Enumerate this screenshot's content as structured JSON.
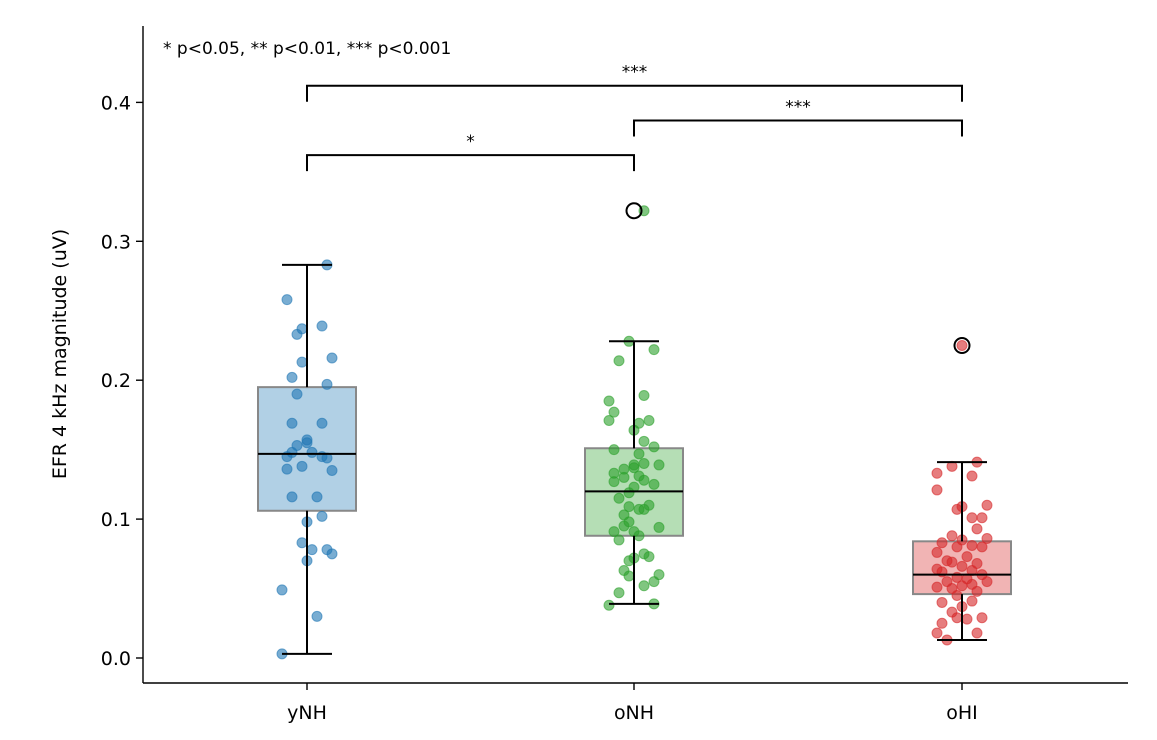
{
  "chart_data": {
    "type": "box",
    "title": "",
    "xlabel": "",
    "ylabel": "EFR 4 kHz magnitude (uV)",
    "ylim": [
      -0.018,
      0.455
    ],
    "yticks": [
      0.0,
      0.1,
      0.2,
      0.3,
      0.4
    ],
    "yticklabels": [
      "0.0",
      "0.1",
      "0.2",
      "0.3",
      "0.4"
    ],
    "grid": false,
    "legend_text": "* p<0.05, ** p<0.01, *** p<0.001",
    "categories": [
      "yNH",
      "oNH",
      "oHI"
    ],
    "colors": [
      "#1f77b4",
      "#2ca02c",
      "#d62728"
    ],
    "boxes": [
      {
        "group": "yNH",
        "q1": 0.106,
        "median": 0.147,
        "q3": 0.195,
        "whislo": 0.003,
        "whishi": 0.283,
        "fliers": []
      },
      {
        "group": "oNH",
        "q1": 0.088,
        "median": 0.12,
        "q3": 0.151,
        "whislo": 0.039,
        "whishi": 0.228,
        "fliers": [
          0.322
        ]
      },
      {
        "group": "oHI",
        "q1": 0.046,
        "median": 0.06,
        "q3": 0.084,
        "whislo": 0.013,
        "whishi": 0.141,
        "fliers": [
          0.225
        ]
      }
    ],
    "points": [
      {
        "group": "yNH",
        "values": [
          {
            "j": -0.05,
            "y": 0.003
          },
          {
            "j": -0.05,
            "y": 0.049
          },
          {
            "j": 0.02,
            "y": 0.03
          },
          {
            "j": 0.05,
            "y": 0.075
          },
          {
            "j": 0.0,
            "y": 0.07
          },
          {
            "j": 0.01,
            "y": 0.078
          },
          {
            "j": 0.04,
            "y": 0.078
          },
          {
            "j": -0.01,
            "y": 0.083
          },
          {
            "j": 0.0,
            "y": 0.098
          },
          {
            "j": 0.03,
            "y": 0.102
          },
          {
            "j": -0.03,
            "y": 0.116
          },
          {
            "j": 0.02,
            "y": 0.116
          },
          {
            "j": -0.04,
            "y": 0.136
          },
          {
            "j": 0.05,
            "y": 0.135
          },
          {
            "j": -0.01,
            "y": 0.138
          },
          {
            "j": -0.04,
            "y": 0.145
          },
          {
            "j": -0.03,
            "y": 0.148
          },
          {
            "j": 0.01,
            "y": 0.148
          },
          {
            "j": 0.03,
            "y": 0.145
          },
          {
            "j": 0.04,
            "y": 0.144
          },
          {
            "j": -0.02,
            "y": 0.153
          },
          {
            "j": 0.0,
            "y": 0.155
          },
          {
            "j": 0.0,
            "y": 0.157
          },
          {
            "j": -0.03,
            "y": 0.169
          },
          {
            "j": 0.03,
            "y": 0.169
          },
          {
            "j": -0.02,
            "y": 0.19
          },
          {
            "j": 0.04,
            "y": 0.197
          },
          {
            "j": -0.03,
            "y": 0.202
          },
          {
            "j": -0.01,
            "y": 0.213
          },
          {
            "j": 0.05,
            "y": 0.216
          },
          {
            "j": -0.02,
            "y": 0.233
          },
          {
            "j": -0.01,
            "y": 0.237
          },
          {
            "j": 0.03,
            "y": 0.239
          },
          {
            "j": -0.04,
            "y": 0.258
          },
          {
            "j": 0.04,
            "y": 0.283
          }
        ]
      },
      {
        "group": "oNH",
        "values": [
          {
            "j": -0.05,
            "y": 0.038
          },
          {
            "j": 0.04,
            "y": 0.039
          },
          {
            "j": -0.03,
            "y": 0.047
          },
          {
            "j": 0.02,
            "y": 0.052
          },
          {
            "j": 0.04,
            "y": 0.055
          },
          {
            "j": 0.05,
            "y": 0.06
          },
          {
            "j": -0.01,
            "y": 0.059
          },
          {
            "j": -0.02,
            "y": 0.063
          },
          {
            "j": 0.0,
            "y": 0.072
          },
          {
            "j": 0.03,
            "y": 0.073
          },
          {
            "j": 0.02,
            "y": 0.075
          },
          {
            "j": -0.01,
            "y": 0.07
          },
          {
            "j": -0.03,
            "y": 0.085
          },
          {
            "j": 0.01,
            "y": 0.088
          },
          {
            "j": -0.04,
            "y": 0.091
          },
          {
            "j": -0.02,
            "y": 0.095
          },
          {
            "j": 0.0,
            "y": 0.091
          },
          {
            "j": -0.01,
            "y": 0.098
          },
          {
            "j": 0.05,
            "y": 0.094
          },
          {
            "j": -0.02,
            "y": 0.103
          },
          {
            "j": 0.01,
            "y": 0.107
          },
          {
            "j": -0.01,
            "y": 0.109
          },
          {
            "j": 0.03,
            "y": 0.11
          },
          {
            "j": 0.02,
            "y": 0.107
          },
          {
            "j": -0.03,
            "y": 0.115
          },
          {
            "j": -0.01,
            "y": 0.119
          },
          {
            "j": 0.0,
            "y": 0.123
          },
          {
            "j": 0.04,
            "y": 0.125
          },
          {
            "j": -0.04,
            "y": 0.127
          },
          {
            "j": -0.02,
            "y": 0.13
          },
          {
            "j": 0.01,
            "y": 0.131
          },
          {
            "j": 0.02,
            "y": 0.128
          },
          {
            "j": -0.04,
            "y": 0.133
          },
          {
            "j": -0.02,
            "y": 0.136
          },
          {
            "j": 0.0,
            "y": 0.137
          },
          {
            "j": 0.0,
            "y": 0.139
          },
          {
            "j": 0.02,
            "y": 0.14
          },
          {
            "j": 0.05,
            "y": 0.139
          },
          {
            "j": 0.01,
            "y": 0.147
          },
          {
            "j": 0.04,
            "y": 0.152
          },
          {
            "j": -0.04,
            "y": 0.15
          },
          {
            "j": 0.02,
            "y": 0.156
          },
          {
            "j": 0.0,
            "y": 0.164
          },
          {
            "j": 0.01,
            "y": 0.169
          },
          {
            "j": 0.03,
            "y": 0.171
          },
          {
            "j": -0.05,
            "y": 0.171
          },
          {
            "j": -0.04,
            "y": 0.177
          },
          {
            "j": -0.05,
            "y": 0.185
          },
          {
            "j": 0.02,
            "y": 0.189
          },
          {
            "j": -0.03,
            "y": 0.214
          },
          {
            "j": 0.04,
            "y": 0.222
          },
          {
            "j": -0.01,
            "y": 0.228
          },
          {
            "j": 0.02,
            "y": 0.322
          }
        ]
      },
      {
        "group": "oHI",
        "values": [
          {
            "j": -0.03,
            "y": 0.013
          },
          {
            "j": 0.03,
            "y": 0.018
          },
          {
            "j": -0.05,
            "y": 0.018
          },
          {
            "j": -0.04,
            "y": 0.025
          },
          {
            "j": -0.01,
            "y": 0.029
          },
          {
            "j": 0.04,
            "y": 0.029
          },
          {
            "j": 0.01,
            "y": 0.028
          },
          {
            "j": -0.02,
            "y": 0.033
          },
          {
            "j": 0.0,
            "y": 0.037
          },
          {
            "j": 0.02,
            "y": 0.041
          },
          {
            "j": -0.04,
            "y": 0.04
          },
          {
            "j": -0.01,
            "y": 0.045
          },
          {
            "j": 0.03,
            "y": 0.048
          },
          {
            "j": -0.05,
            "y": 0.051
          },
          {
            "j": -0.02,
            "y": 0.05
          },
          {
            "j": 0.0,
            "y": 0.052
          },
          {
            "j": 0.02,
            "y": 0.053
          },
          {
            "j": 0.05,
            "y": 0.055
          },
          {
            "j": -0.03,
            "y": 0.055
          },
          {
            "j": 0.01,
            "y": 0.057
          },
          {
            "j": -0.01,
            "y": 0.058
          },
          {
            "j": 0.04,
            "y": 0.06
          },
          {
            "j": -0.04,
            "y": 0.062
          },
          {
            "j": 0.02,
            "y": 0.063
          },
          {
            "j": -0.05,
            "y": 0.064
          },
          {
            "j": 0.0,
            "y": 0.066
          },
          {
            "j": 0.03,
            "y": 0.068
          },
          {
            "j": -0.02,
            "y": 0.069
          },
          {
            "j": -0.03,
            "y": 0.07
          },
          {
            "j": 0.01,
            "y": 0.073
          },
          {
            "j": -0.05,
            "y": 0.076
          },
          {
            "j": 0.04,
            "y": 0.08
          },
          {
            "j": -0.01,
            "y": 0.08
          },
          {
            "j": 0.02,
            "y": 0.081
          },
          {
            "j": -0.04,
            "y": 0.083
          },
          {
            "j": 0.0,
            "y": 0.085
          },
          {
            "j": 0.05,
            "y": 0.086
          },
          {
            "j": -0.02,
            "y": 0.088
          },
          {
            "j": 0.03,
            "y": 0.093
          },
          {
            "j": 0.02,
            "y": 0.101
          },
          {
            "j": 0.04,
            "y": 0.101
          },
          {
            "j": -0.01,
            "y": 0.107
          },
          {
            "j": 0.0,
            "y": 0.109
          },
          {
            "j": 0.05,
            "y": 0.11
          },
          {
            "j": -0.05,
            "y": 0.121
          },
          {
            "j": 0.02,
            "y": 0.131
          },
          {
            "j": -0.05,
            "y": 0.133
          },
          {
            "j": -0.02,
            "y": 0.138
          },
          {
            "j": 0.03,
            "y": 0.141
          },
          {
            "j": 0.0,
            "y": 0.225
          }
        ]
      }
    ],
    "significance": [
      {
        "from": "yNH",
        "to": "oNH",
        "y": 0.362,
        "label": "*"
      },
      {
        "from": "oNH",
        "to": "oHI",
        "y": 0.387,
        "label": "***"
      },
      {
        "from": "yNH",
        "to": "oHI",
        "y": 0.412,
        "label": "***"
      }
    ]
  }
}
